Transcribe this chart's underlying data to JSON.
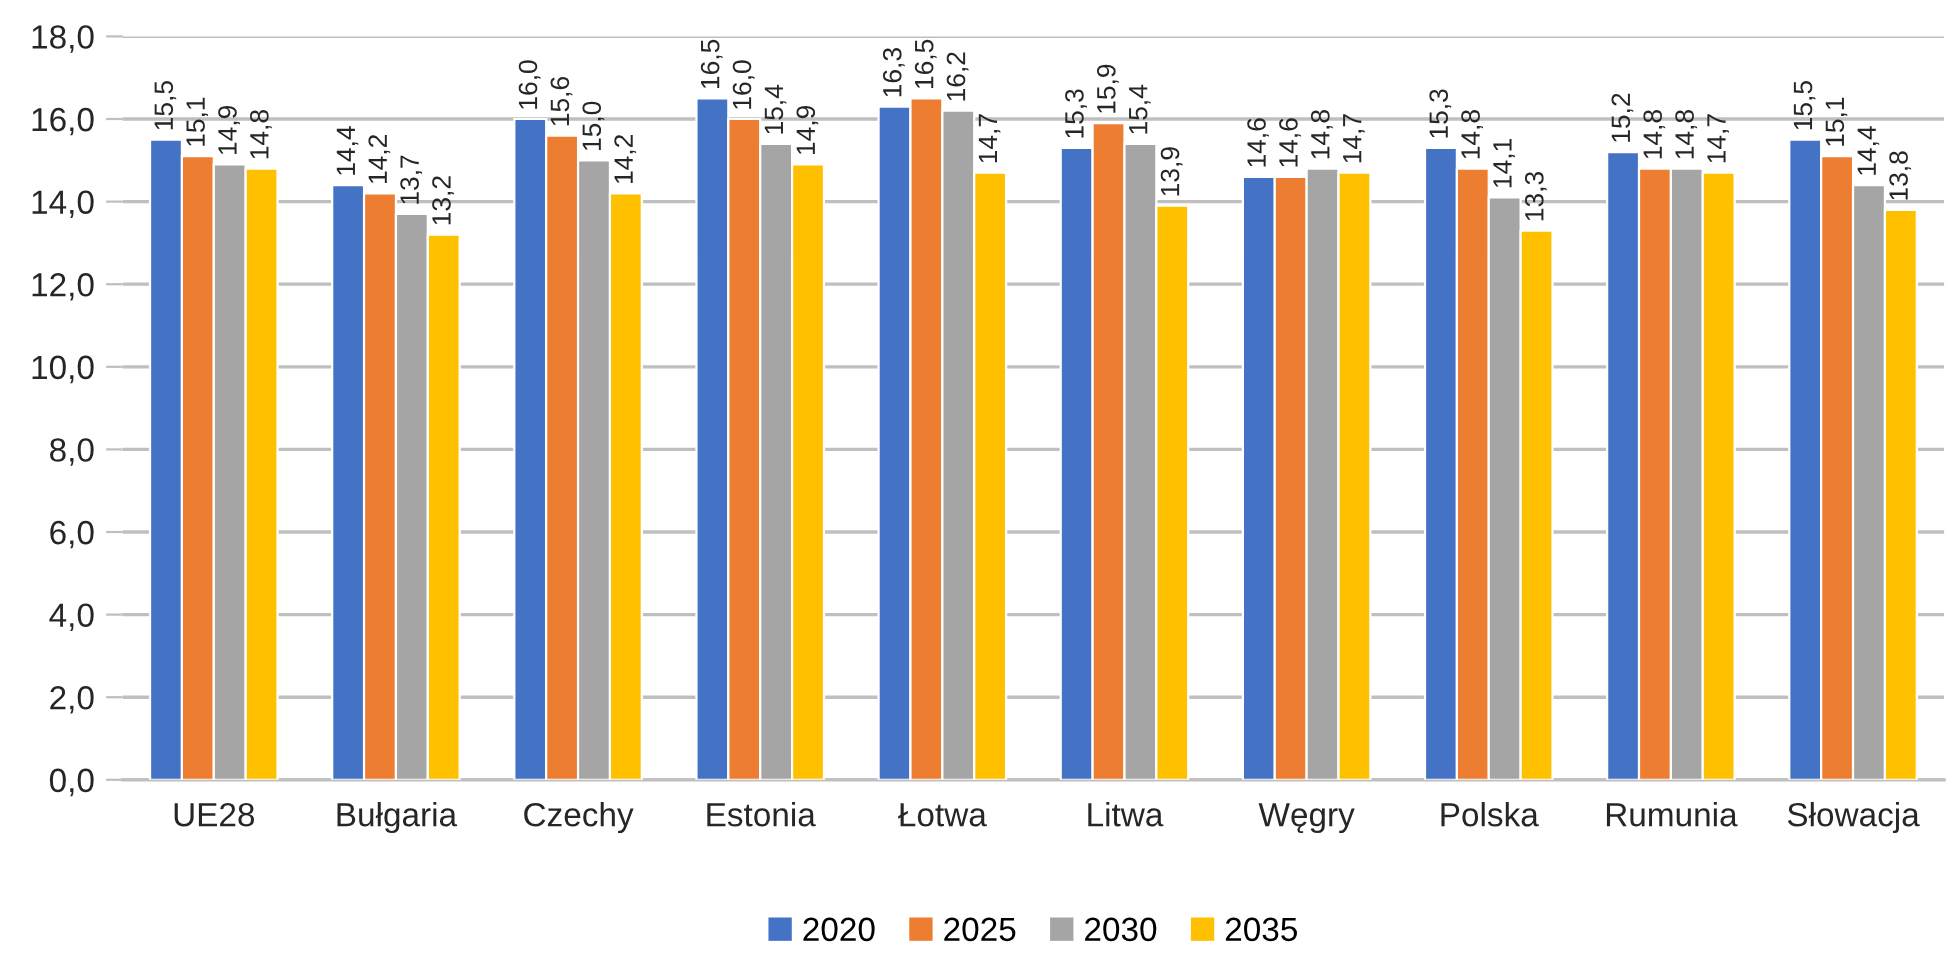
{
  "chart_data": {
    "type": "bar",
    "categories": [
      "UE28",
      "Bułgaria",
      "Czechy",
      "Estonia",
      "Łotwa",
      "Litwa",
      "Węgry",
      "Polska",
      "Rumunia",
      "Słowacja"
    ],
    "series": [
      {
        "name": "2020",
        "color": "#4472c4",
        "values": [
          15.5,
          14.4,
          16.0,
          16.5,
          16.3,
          15.3,
          14.6,
          15.3,
          15.2,
          15.5
        ],
        "value_labels": [
          "15,5",
          "14,4",
          "16,0",
          "16,5",
          "16,3",
          "15,3",
          "14,6",
          "15,3",
          "15,2",
          "15,5"
        ]
      },
      {
        "name": "2025",
        "color": "#ed7d31",
        "values": [
          15.1,
          14.2,
          15.6,
          16.0,
          16.5,
          15.9,
          14.6,
          14.8,
          14.8,
          15.1
        ],
        "value_labels": [
          "15,1",
          "14,2",
          "15,6",
          "16,0",
          "16,5",
          "15,9",
          "14,6",
          "14,8",
          "14,8",
          "15,1"
        ]
      },
      {
        "name": "2030",
        "color": "#a5a5a5",
        "values": [
          14.9,
          13.7,
          15.0,
          15.4,
          16.2,
          15.4,
          14.8,
          14.1,
          14.8,
          14.4
        ],
        "value_labels": [
          "14,9",
          "13,7",
          "15,0",
          "15,4",
          "16,2",
          "15,4",
          "14,8",
          "14,1",
          "14,8",
          "14,4"
        ]
      },
      {
        "name": "2035",
        "color": "#ffc000",
        "values": [
          14.8,
          13.2,
          14.2,
          14.9,
          14.7,
          13.9,
          14.7,
          13.3,
          14.7,
          13.8
        ],
        "value_labels": [
          "14,8",
          "13,2",
          "14,2",
          "14,9",
          "14,7",
          "13,9",
          "14,7",
          "13,3",
          "14,7",
          "13,8"
        ]
      }
    ],
    "ylim": [
      0,
      18
    ],
    "yticks": [
      {
        "value": 0,
        "label": "0,0"
      },
      {
        "value": 2,
        "label": "2,0"
      },
      {
        "value": 4,
        "label": "4,0"
      },
      {
        "value": 6,
        "label": "6,0"
      },
      {
        "value": 8,
        "label": "8,0"
      },
      {
        "value": 10,
        "label": "10,0"
      },
      {
        "value": 12,
        "label": "12,0"
      },
      {
        "value": 14,
        "label": "14,0"
      },
      {
        "value": 16,
        "label": "16,0"
      },
      {
        "value": 18,
        "label": "18,0"
      }
    ],
    "grid": "y",
    "legend": "bottom"
  }
}
